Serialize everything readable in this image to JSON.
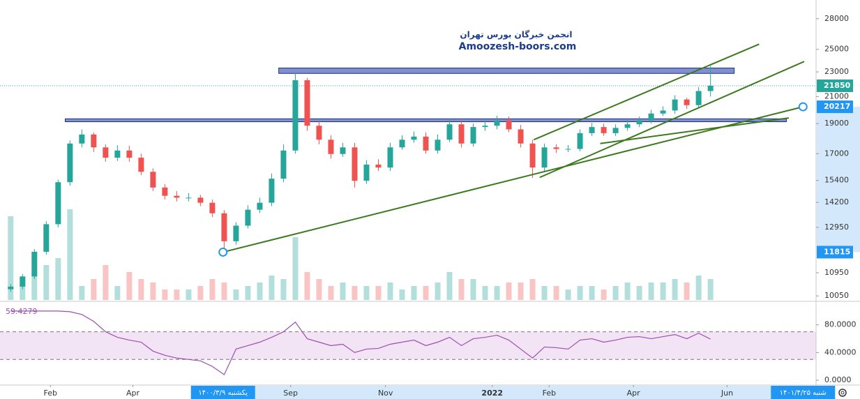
{
  "watermark": {
    "line1": "انجمن خبرگان بورس تهران",
    "line2": "Amoozesh-boors.com"
  },
  "chart_data": [
    {
      "type": "candlestick",
      "xlim": [
        -0.9,
        67.9
      ],
      "xticks": [
        {
          "value": 3.35,
          "label": "Feb"
        },
        {
          "value": 10.3,
          "label": "Apr"
        },
        {
          "value": 23.6,
          "label": "Sep"
        },
        {
          "value": 31.6,
          "label": "Nov"
        },
        {
          "value": 40.6,
          "label": "2022"
        },
        {
          "value": 45.4,
          "label": "Feb"
        },
        {
          "value": 52.5,
          "label": "Apr"
        },
        {
          "value": 60.4,
          "label": "Jun"
        }
      ],
      "ylim": [
        9850,
        30000
      ],
      "log_scale": true,
      "grid": false,
      "yticks": [
        28000,
        25000,
        23000,
        21000,
        19000,
        17000,
        15400,
        14200,
        12950,
        10950,
        10050
      ],
      "up_color": "#26a69a",
      "down_color": "#ef5350",
      "open": [
        10300,
        10400,
        10800,
        11830,
        13100,
        15300,
        17650,
        18250,
        17400,
        16750,
        17200,
        16750,
        15900,
        15000,
        14550,
        14450,
        14450,
        14180,
        13640,
        12300,
        13030,
        13820,
        14180,
        15500,
        17200,
        22300,
        18850,
        17900,
        16980,
        17400,
        15380,
        16330,
        16150,
        17400,
        17900,
        18110,
        17200,
        17900,
        18950,
        17650,
        18760,
        18850,
        19220,
        18600,
        17650,
        16150,
        17400,
        17300,
        17300,
        18340,
        18760,
        18340,
        18700,
        18950,
        19220,
        19720,
        19940,
        20770,
        20340,
        21430
      ],
      "high": [
        10500,
        10900,
        11950,
        13250,
        15450,
        17850,
        18600,
        18400,
        17600,
        17550,
        17500,
        17000,
        16100,
        15200,
        14800,
        14700,
        14600,
        14350,
        13800,
        13200,
        14050,
        14450,
        15800,
        17600,
        22900,
        22500,
        19200,
        18200,
        17700,
        17700,
        16600,
        16650,
        17700,
        18200,
        18450,
        18400,
        18250,
        19350,
        19200,
        19000,
        19200,
        19550,
        19500,
        18900,
        17900,
        17650,
        17600,
        17550,
        18600,
        19050,
        19000,
        18950,
        19250,
        19500,
        20000,
        20250,
        21100,
        20900,
        21750,
        23500
      ],
      "low": [
        10200,
        10300,
        10700,
        11700,
        12950,
        15100,
        17400,
        17100,
        16500,
        16550,
        16500,
        15700,
        14800,
        14350,
        14250,
        14250,
        14000,
        13450,
        11815,
        12150,
        12900,
        13650,
        14000,
        15300,
        17000,
        18500,
        17600,
        16700,
        16800,
        15000,
        15200,
        15950,
        15950,
        17250,
        17700,
        17000,
        17000,
        17750,
        17400,
        17450,
        18500,
        18600,
        18400,
        17400,
        15550,
        15950,
        17050,
        17100,
        17150,
        18150,
        18150,
        18150,
        18500,
        18750,
        19000,
        19550,
        19700,
        20050,
        20150,
        21000
      ],
      "close": [
        10400,
        10800,
        11830,
        13100,
        15300,
        17650,
        18250,
        17400,
        16750,
        17200,
        16750,
        15900,
        15000,
        14550,
        14450,
        14450,
        14180,
        13640,
        12300,
        13030,
        13820,
        14180,
        15500,
        17200,
        22300,
        18850,
        17900,
        16980,
        17400,
        15380,
        16330,
        16150,
        17400,
        17900,
        18110,
        17200,
        17900,
        18950,
        17650,
        18760,
        18850,
        19220,
        18600,
        17650,
        16150,
        17400,
        17300,
        17300,
        18340,
        18760,
        18340,
        18700,
        18950,
        19220,
        19720,
        19940,
        20770,
        20340,
        21430,
        21850
      ],
      "volume": [
        120,
        30,
        40,
        50,
        60,
        130,
        20,
        30,
        50,
        20,
        40,
        30,
        25,
        15,
        15,
        15,
        20,
        30,
        25,
        15,
        20,
        25,
        35,
        30,
        90,
        40,
        30,
        20,
        25,
        20,
        20,
        20,
        25,
        15,
        20,
        20,
        25,
        40,
        30,
        30,
        20,
        20,
        25,
        25,
        30,
        20,
        20,
        15,
        20,
        20,
        15,
        20,
        25,
        20,
        25,
        25,
        30,
        25,
        35,
        30
      ],
      "last_price": 21850,
      "zones": [
        {
          "x": [
            22.6,
            61.0
          ],
          "y": [
            22870,
            23330
          ]
        },
        {
          "x": [
            4.6,
            65.4
          ],
          "y": [
            19130,
            19340
          ]
        }
      ],
      "trend_lines": [
        {
          "x": [
            17.9,
            66.8
          ],
          "y": [
            11815,
            20217
          ],
          "start_label": "یکشنبه ۱۴۰۰/۳/۹",
          "end_label": "شنبه ۱۴۰۱/۴/۲۵"
        },
        {
          "x": [
            44.1,
            63.1
          ],
          "y": [
            17900,
            25480
          ]
        },
        {
          "x": [
            44.6,
            66.9
          ],
          "y": [
            15570,
            23900
          ]
        },
        {
          "x": [
            49.7,
            65.6
          ],
          "y": [
            17650,
            19400
          ]
        }
      ],
      "line_color": "#3b7a1e"
    },
    {
      "type": "line",
      "name": "RSI",
      "color": "#9c4fb0",
      "ylim": [
        -7,
        114
      ],
      "yticks": [
        {
          "value": 80,
          "label": "80.0000"
        },
        {
          "value": 40,
          "label": "40.0000"
        },
        {
          "value": 0,
          "label": "0.0000"
        }
      ],
      "band": [
        30,
        70
      ],
      "values": [
        100,
        100,
        100,
        100,
        100,
        99,
        95,
        85,
        70,
        62,
        58,
        55,
        42,
        36,
        32,
        30,
        28,
        20,
        8,
        45,
        50,
        55,
        62,
        70,
        84,
        60,
        55,
        50,
        52,
        40,
        45,
        46,
        52,
        55,
        58,
        50,
        55,
        62,
        50,
        60,
        62,
        65,
        58,
        45,
        32,
        48,
        47,
        45,
        58,
        60,
        55,
        58,
        62,
        63,
        60,
        63,
        66,
        60,
        68,
        59.4279
      ]
    }
  ]
}
